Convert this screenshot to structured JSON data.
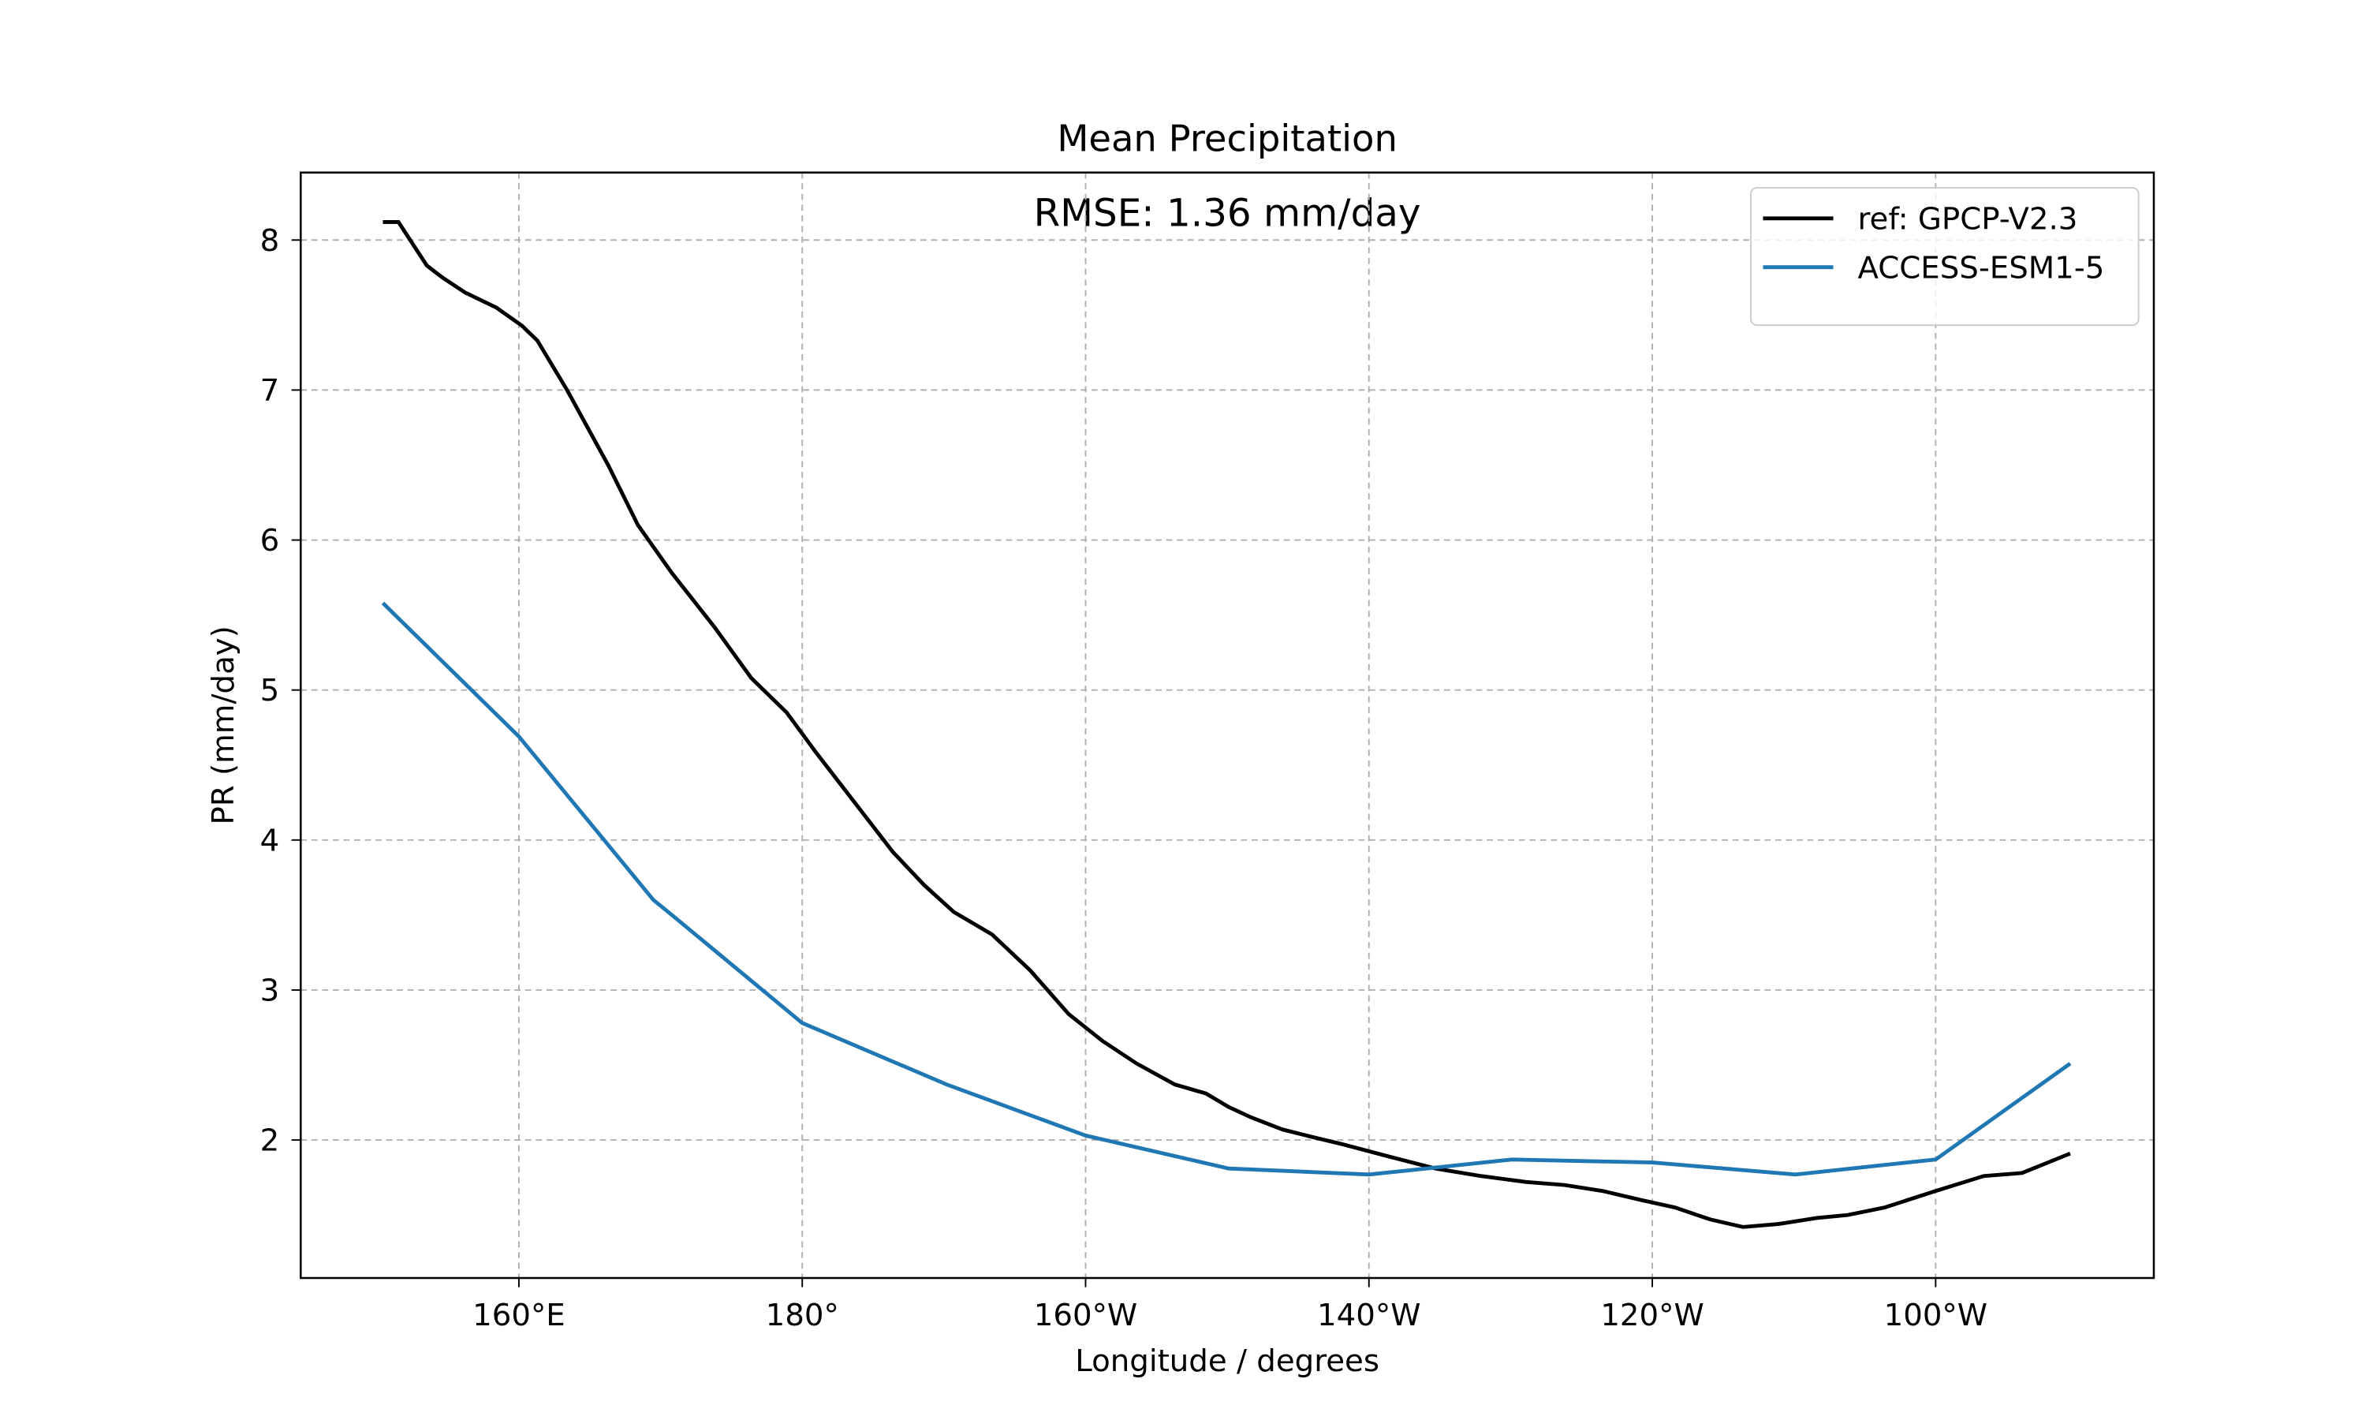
{
  "chart_data": {
    "type": "line",
    "title": "Mean Precipitation",
    "annotation": "RMSE: 1.36 mm/day",
    "xlabel": "Longitude / degrees",
    "ylabel": "PR (mm/day)",
    "xlim": [
      144.6,
      275.4
    ],
    "ylim": [
      1.08,
      8.45
    ],
    "xticks": [
      {
        "value": 160,
        "label": "160°E"
      },
      {
        "value": 180,
        "label": "180°"
      },
      {
        "value": 200,
        "label": "160°W"
      },
      {
        "value": 220,
        "label": "140°W"
      },
      {
        "value": 240,
        "label": "120°W"
      },
      {
        "value": 260,
        "label": "100°W"
      }
    ],
    "yticks": [
      2,
      3,
      4,
      5,
      6,
      7,
      8
    ],
    "grid": true,
    "legend": "upper right",
    "series": [
      {
        "name": "ref: GPCP-V2.3",
        "color": "#000000",
        "x": [
          150.4,
          151.5,
          153.5,
          154.6,
          156.2,
          158.4,
          160.2,
          161.3,
          163.4,
          166.3,
          168.4,
          170.8,
          173.8,
          176.4,
          178.9,
          181.0,
          183.7,
          186.4,
          188.6,
          190.7,
          193.4,
          196.1,
          198.8,
          201.2,
          203.6,
          206.3,
          208.5,
          210.1,
          211.7,
          213.9,
          216.0,
          218.2,
          221.4,
          224.7,
          227.9,
          231.1,
          233.8,
          236.5,
          239.2,
          241.6,
          244.1,
          246.4,
          248.9,
          251.6,
          253.8,
          256.4,
          260.0,
          263.4,
          266.1,
          269.5
        ],
        "values": [
          8.12,
          8.12,
          7.83,
          7.75,
          7.65,
          7.55,
          7.43,
          7.33,
          7.0,
          6.5,
          6.1,
          5.78,
          5.42,
          5.08,
          4.85,
          4.58,
          4.25,
          3.92,
          3.7,
          3.52,
          3.37,
          3.13,
          2.84,
          2.66,
          2.51,
          2.37,
          2.31,
          2.22,
          2.15,
          2.07,
          2.02,
          1.97,
          1.89,
          1.81,
          1.76,
          1.72,
          1.7,
          1.66,
          1.6,
          1.55,
          1.47,
          1.42,
          1.44,
          1.48,
          1.5,
          1.55,
          1.66,
          1.76,
          1.78,
          1.91
        ]
      },
      {
        "name": "ACCESS-ESM1-5",
        "color": "#1f77b4",
        "x": [
          150.4,
          160,
          169.5,
          170.8,
          180,
          190.2,
          200,
          210.1,
          220,
          230.1,
          240,
          250.1,
          260,
          269.5
        ],
        "values": [
          5.58,
          4.69,
          3.6,
          3.5,
          2.78,
          2.37,
          2.03,
          1.81,
          1.77,
          1.87,
          1.85,
          1.77,
          1.87,
          2.51
        ]
      }
    ]
  }
}
